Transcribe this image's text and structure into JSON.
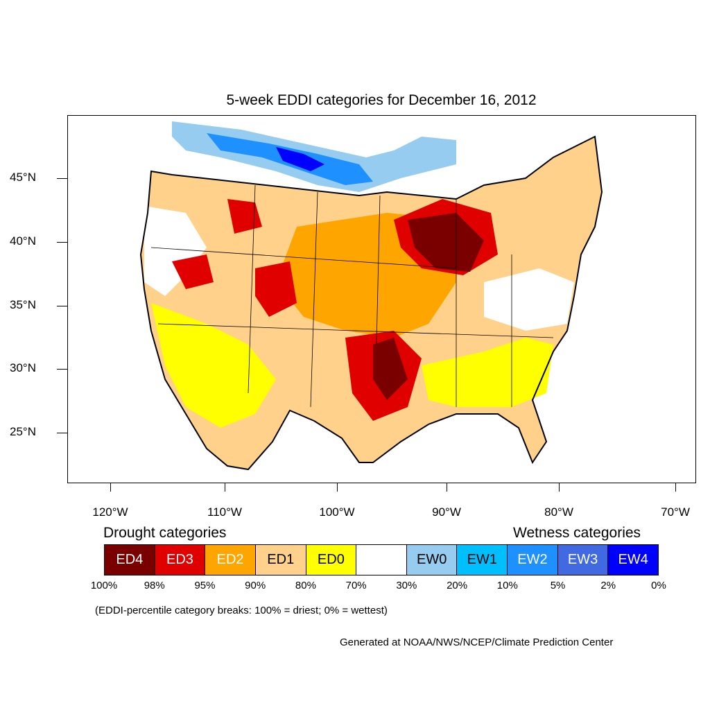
{
  "title": "5-week EDDI categories for December 16, 2012",
  "lat_labels": [
    "45°N",
    "40°N",
    "35°N",
    "30°N",
    "25°N"
  ],
  "lon_labels": [
    "120°W",
    "110°W",
    "100°W",
    "90°W",
    "80°W",
    "70°W"
  ],
  "legend": {
    "drought_heading": "Drought categories",
    "wetness_heading": "Wetness categories",
    "categories": [
      {
        "label": "ED4",
        "color": "#7a0000",
        "text_color": "#ffffff"
      },
      {
        "label": "ED3",
        "color": "#e00000",
        "text_color": "#ffffff"
      },
      {
        "label": "ED2",
        "color": "#ffa500",
        "text_color": "#ffffff"
      },
      {
        "label": "ED1",
        "color": "#ffd18a",
        "text_color": "#000000"
      },
      {
        "label": "ED0",
        "color": "#ffff00",
        "text_color": "#000000"
      },
      {
        "label": "",
        "color": "#ffffff",
        "text_color": "#000000"
      },
      {
        "label": "EW0",
        "color": "#95ccf0",
        "text_color": "#000000"
      },
      {
        "label": "EW1",
        "color": "#00bfff",
        "text_color": "#000000"
      },
      {
        "label": "EW2",
        "color": "#1e90ff",
        "text_color": "#ffffff"
      },
      {
        "label": "EW3",
        "color": "#4169e1",
        "text_color": "#ffffff"
      },
      {
        "label": "EW4",
        "color": "#0000ff",
        "text_color": "#ffffff"
      }
    ],
    "percentiles": [
      "100%",
      "98%",
      "95%",
      "90%",
      "80%",
      "70%",
      "30%",
      "20%",
      "10%",
      "5%",
      "2%",
      "0%"
    ]
  },
  "note": "(EDDI-percentile category breaks: 100% = driest; 0% = wettest)",
  "credit": "Generated at NOAA/NWS/NCEP/Climate Prediction Center"
}
